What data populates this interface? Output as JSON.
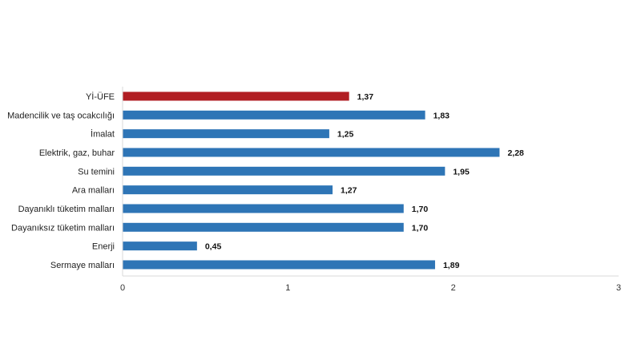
{
  "chart_data": {
    "type": "bar",
    "orientation": "horizontal",
    "title": "",
    "xlabel": "",
    "ylabel": "",
    "categories": [
      "Yİ-ÜFE",
      "Madencilik ve taş ocakcılığı",
      "İmalat",
      "Elektrik, gaz, buhar",
      "Su temini",
      "Ara malları",
      "Dayanıklı tüketim malları",
      "Dayanıksız tüketim malları",
      "Enerji",
      "Sermaye malları"
    ],
    "values": [
      1.37,
      1.83,
      1.25,
      2.28,
      1.95,
      1.27,
      1.7,
      1.7,
      0.45,
      1.89
    ],
    "value_labels": [
      "1,37",
      "1,83",
      "1,25",
      "2,28",
      "1,95",
      "1,27",
      "1,70",
      "1,70",
      "0,45",
      "1,89"
    ],
    "xlim": [
      0,
      3
    ],
    "x_ticks": [
      "0",
      "1",
      "2",
      "3"
    ],
    "grid": false,
    "legend": "none",
    "colors": {
      "highlight": "#b11e23",
      "default": "#2e75b6",
      "axis": "#d9d9d9"
    }
  }
}
